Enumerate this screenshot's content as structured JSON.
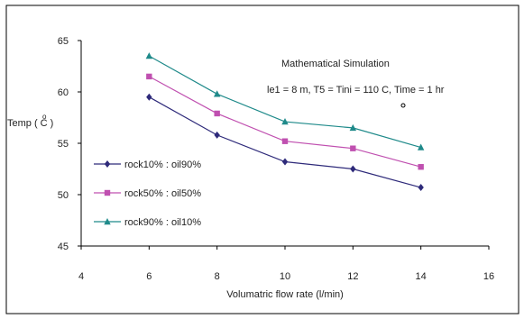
{
  "chart_data": {
    "type": "line",
    "annotations": {
      "title": "Mathematical  Simulation",
      "params": "le1 = 8 m, T5 = Tini = 110  C, Time = 1 hr"
    },
    "xlabel": "Volumatric  flow rate  (l/min)",
    "ylabel": "Temp (  C )",
    "ylabel_unit_symbol": "o",
    "xlim": [
      4,
      16
    ],
    "ylim": [
      45,
      65
    ],
    "x_ticks": [
      4,
      6,
      8,
      10,
      12,
      14,
      16
    ],
    "y_ticks": [
      45,
      50,
      55,
      60,
      65
    ],
    "grid": false,
    "legend_placement": "left",
    "x": [
      6,
      8,
      10,
      12,
      14
    ],
    "series": [
      {
        "name": "rock10% : oil90%",
        "color": "#2e2a7a",
        "marker": "diamond",
        "values": [
          59.5,
          55.8,
          53.2,
          52.5,
          50.7
        ]
      },
      {
        "name": "rock50% : oil50%",
        "color": "#c050b0",
        "marker": "square",
        "values": [
          61.5,
          57.9,
          55.2,
          54.5,
          52.7
        ]
      },
      {
        "name": "rock90% : oil10%",
        "color": "#1f8a8a",
        "marker": "triangle",
        "values": [
          63.5,
          59.8,
          57.1,
          56.5,
          54.6
        ]
      }
    ]
  }
}
